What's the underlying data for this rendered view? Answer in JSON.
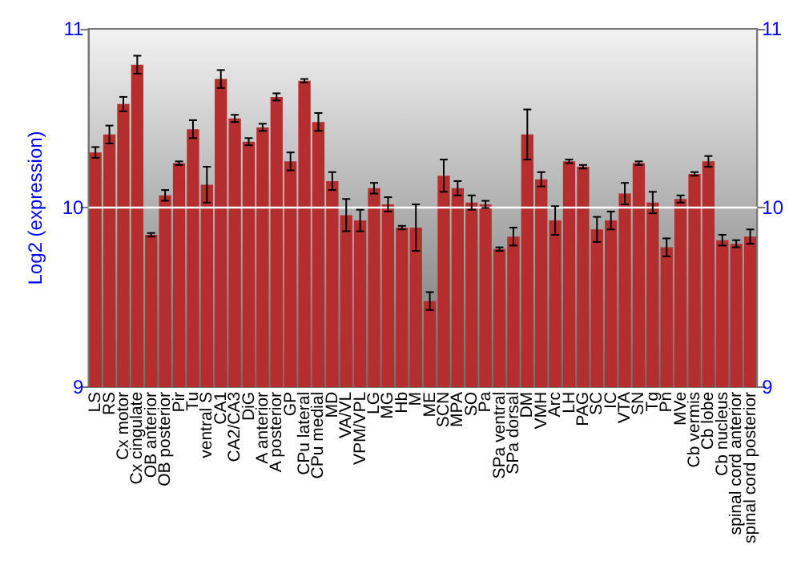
{
  "chart_data": {
    "type": "bar",
    "ylabel": "Log2 (expression)",
    "categories": [
      "LS",
      "RS",
      "Cx motor",
      "Cx cingulate",
      "OB anterior",
      "OB posterior",
      "Pir",
      "Tu",
      "ventral S",
      "CA1",
      "CA2/CA3",
      "DiG",
      "A anterior",
      "A posterior",
      "GP",
      "CPu lateral",
      "CPu medial",
      "MD",
      "VA/VL",
      "VPM/VPL",
      "LG",
      "MG",
      "Hb",
      "M",
      "ME",
      "SCN",
      "MPA",
      "SO",
      "Pa",
      "SPa ventral",
      "SPa dorsal",
      "DM",
      "VMH",
      "Arc",
      "LH",
      "PAG",
      "SC",
      "IC",
      "VTA",
      "SN",
      "Tg",
      "Pn",
      "MVe",
      "Cb vermis",
      "Cb lobe",
      "Cb nucleus",
      "spinal cord anterior",
      "spinal cord posterior"
    ],
    "values": [
      10.31,
      10.41,
      10.58,
      10.8,
      9.85,
      10.07,
      10.25,
      10.44,
      10.13,
      10.72,
      10.5,
      10.37,
      10.45,
      10.62,
      10.26,
      10.71,
      10.48,
      10.15,
      9.96,
      9.93,
      10.11,
      10.02,
      9.89,
      9.89,
      9.48,
      10.18,
      10.11,
      10.03,
      10.02,
      9.77,
      9.84,
      10.41,
      10.16,
      9.93,
      10.26,
      10.23,
      9.88,
      9.93,
      10.08,
      10.25,
      10.03,
      9.78,
      10.05,
      10.19,
      10.26,
      9.82,
      9.8,
      9.84
    ],
    "errors": [
      0.03,
      0.05,
      0.04,
      0.05,
      0.01,
      0.03,
      0.01,
      0.05,
      0.1,
      0.05,
      0.02,
      0.02,
      0.02,
      0.02,
      0.05,
      0.01,
      0.05,
      0.05,
      0.09,
      0.06,
      0.03,
      0.04,
      0.01,
      0.13,
      0.05,
      0.09,
      0.04,
      0.04,
      0.02,
      0.01,
      0.05,
      0.14,
      0.04,
      0.08,
      0.01,
      0.01,
      0.07,
      0.05,
      0.06,
      0.01,
      0.06,
      0.05,
      0.02,
      0.01,
      0.03,
      0.03,
      0.02,
      0.04
    ],
    "color": "#b52e2e",
    "ylim": [
      9,
      11
    ],
    "yticks": [
      9,
      10,
      11
    ],
    "y2lim": [
      9,
      11
    ],
    "y2ticks": [
      9,
      10,
      11
    ],
    "grid": "y"
  }
}
